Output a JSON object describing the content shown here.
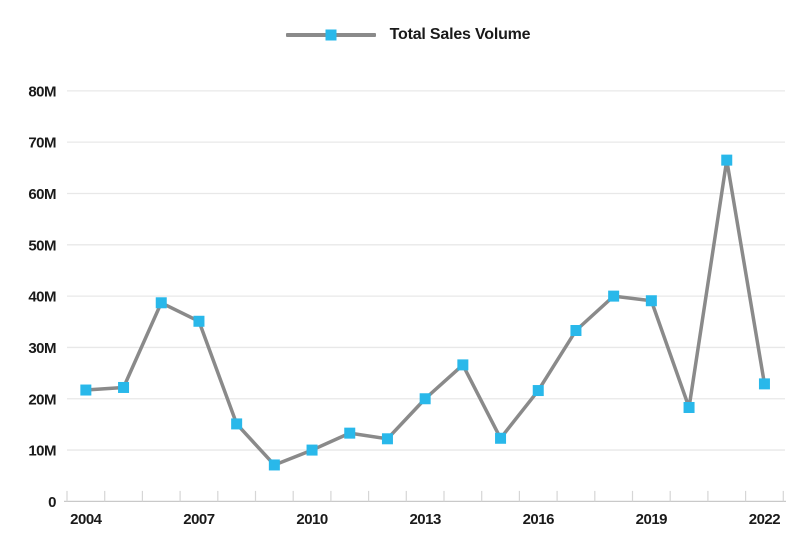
{
  "legend": {
    "label": "Total Sales Volume"
  },
  "colors": {
    "background": "#ffffff",
    "marker": "#29b8ea",
    "line": "#8a8a8a",
    "gridline": "#e8e8e8",
    "axis_line": "#c9c9c9",
    "tick": "#d6d6d6",
    "label_text": "#1a1a1a"
  },
  "chart_data": {
    "type": "line",
    "title": "",
    "xlabel": "",
    "ylabel": "",
    "unit": "M",
    "x": [
      2004,
      2005,
      2006,
      2007,
      2008,
      2009,
      2010,
      2011,
      2012,
      2013,
      2014,
      2015,
      2016,
      2017,
      2018,
      2019,
      2020,
      2021,
      2022
    ],
    "series": [
      {
        "name": "Total Sales Volume",
        "values": [
          21.7,
          22.2,
          38.7,
          35.1,
          15.1,
          7.1,
          10.0,
          13.3,
          12.2,
          20.0,
          26.6,
          12.3,
          21.6,
          33.3,
          40.0,
          39.1,
          18.3,
          66.5,
          22.9
        ]
      }
    ],
    "ylim": [
      0,
      80
    ],
    "ytick_step": 10,
    "ytick_labels": [
      "0",
      "10M",
      "20M",
      "30M",
      "40M",
      "50M",
      "60M",
      "70M",
      "80M"
    ],
    "xtick_labels": [
      "2004",
      "2007",
      "2010",
      "2013",
      "2016",
      "2019",
      "2022"
    ],
    "xtick_label_indices": [
      0,
      3,
      6,
      9,
      12,
      15,
      18
    ],
    "grid": "horizontal",
    "legend_position": "top-center",
    "marker_shape": "square"
  }
}
